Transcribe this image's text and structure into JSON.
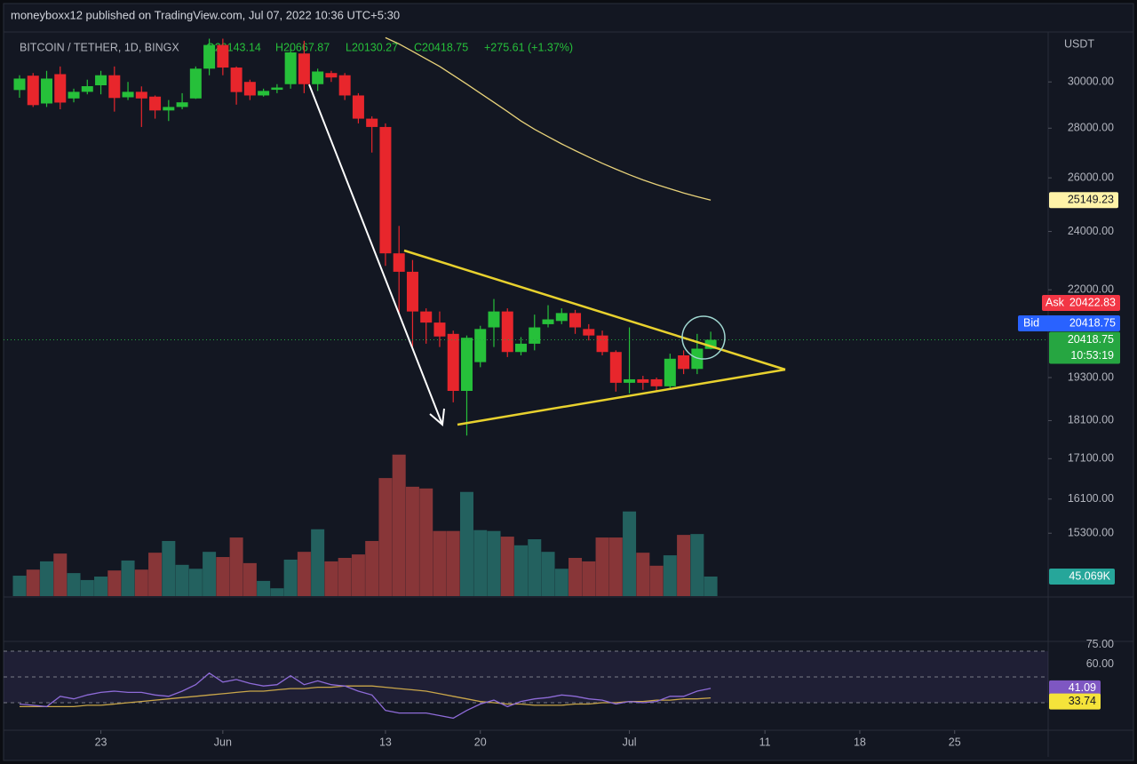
{
  "chart_data": {
    "type": "candlestick",
    "header": "moneyboxx12 published on TradingView.com, Jul 07, 2022 10:36 UTC+5:30",
    "legend": {
      "symbol": "BITCOIN / TETHER, 1D, BINGX",
      "open": "O20143.14",
      "high": "H20667.87",
      "low": "L20130.27",
      "close": "C20418.75",
      "change": "+275.61 (+1.37%)"
    },
    "log_scale": true,
    "y_unit": "USDT",
    "up_color": "#26c03a",
    "down_color": "#e8262c",
    "open": [
      29640,
      30280,
      29050,
      30350,
      29270,
      29560,
      29850,
      30300,
      29320,
      29560,
      29350,
      28750,
      28900,
      29270,
      30600,
      31700,
      30650,
      30000,
      29400,
      29650,
      29900,
      31300,
      29900,
      30400,
      30300,
      29400,
      28400,
      28050,
      23230,
      22600,
      21300,
      20950,
      20600,
      18920,
      19750,
      20800,
      21300,
      20050,
      20300,
      20900,
      21000,
      21250,
      20750,
      20550,
      20050,
      19150,
      19250,
      19250,
      19050,
      19950,
      19550,
      20143.14
    ],
    "high": [
      30300,
      30400,
      30500,
      30700,
      29700,
      30100,
      30500,
      30700,
      30000,
      29800,
      29400,
      29200,
      29500,
      30700,
      32000,
      32000,
      30700,
      30100,
      29700,
      29900,
      31500,
      31900,
      30600,
      30500,
      30400,
      29500,
      28500,
      28200,
      24200,
      23000,
      21400,
      21300,
      20700,
      20550,
      20850,
      21700,
      21400,
      20500,
      21200,
      21500,
      21400,
      21350,
      20900,
      20700,
      20100,
      20800,
      19350,
      19300,
      20000,
      20100,
      20600,
      20667.87
    ],
    "low": [
      29300,
      28900,
      28900,
      28800,
      29100,
      29450,
      29450,
      28700,
      29200,
      28050,
      28400,
      28300,
      28800,
      29250,
      30300,
      30300,
      29000,
      29200,
      29350,
      29500,
      29700,
      29500,
      29600,
      30000,
      29200,
      28200,
      27000,
      22800,
      21200,
      20200,
      20300,
      20200,
      18600,
      17700,
      19600,
      20200,
      19900,
      19950,
      20100,
      20800,
      20900,
      20600,
      20400,
      19950,
      18900,
      18850,
      18950,
      18900,
      19000,
      19400,
      19400,
      20130.27
    ],
    "close": [
      30150,
      28980,
      30150,
      29090,
      29560,
      29810,
      30300,
      29290,
      29560,
      29270,
      28750,
      28900,
      29100,
      30600,
      31700,
      30650,
      29550,
      29400,
      29600,
      29750,
      31350,
      29900,
      30470,
      30200,
      29400,
      28400,
      28050,
      23230,
      22600,
      21300,
      20950,
      20520,
      18920,
      20480,
      20750,
      21300,
      20050,
      20300,
      20800,
      21050,
      21250,
      20800,
      20550,
      20050,
      19150,
      19250,
      19150,
      19050,
      19850,
      19550,
      20150,
      20418.75
    ],
    "xlim": [
      -1.18,
      75.9
    ],
    "xticks": [
      {
        "value": 6,
        "label": "23"
      },
      {
        "value": 15,
        "label": "Jun"
      },
      {
        "value": 27,
        "label": "13"
      },
      {
        "value": 34,
        "label": "20"
      },
      {
        "value": 45,
        "label": "Jul"
      },
      {
        "value": 55,
        "label": "11"
      },
      {
        "value": 62,
        "label": "18"
      },
      {
        "value": 69,
        "label": "25"
      }
    ],
    "ylim": [
      13930,
      32150
    ],
    "yticks": [
      {
        "value": 30000,
        "label": "30000.00"
      },
      {
        "value": 28000,
        "label": "28000.00"
      },
      {
        "value": 26000,
        "label": "26000.00"
      },
      {
        "value": 24000,
        "label": "24000.00"
      },
      {
        "value": 22000,
        "label": "22000.00"
      },
      {
        "value": 19300,
        "label": "19300.00"
      },
      {
        "value": 18100,
        "label": "18100.00"
      },
      {
        "value": 17100,
        "label": "17100.00"
      },
      {
        "value": 16100,
        "label": "16100.00"
      },
      {
        "value": 15300,
        "label": "15300.00"
      }
    ],
    "moving_average": {
      "color": "#e8d27a",
      "values": [
        null,
        null,
        null,
        null,
        null,
        null,
        null,
        null,
        null,
        null,
        null,
        null,
        null,
        null,
        null,
        null,
        null,
        null,
        null,
        null,
        null,
        null,
        null,
        null,
        null,
        null,
        null,
        32050,
        31750,
        31400,
        31050,
        30700,
        30300,
        29900,
        29500,
        29100,
        28700,
        28300,
        27950,
        27650,
        27350,
        27080,
        26820,
        26570,
        26340,
        26120,
        25920,
        25740,
        25580,
        25420,
        25280,
        25149.23
      ]
    },
    "quote": {
      "ask_label": "Ask",
      "ask": 20422.83,
      "bid_label": "Bid",
      "countdown": "10:53:19"
    },
    "volume": {
      "up_color": "#23615f",
      "down_color": "#883638",
      "ylim": [
        0,
        350
      ],
      "values": [
        47,
        61,
        80,
        98,
        53,
        37,
        45,
        59,
        82,
        61,
        100,
        127,
        72,
        63,
        102,
        90,
        135,
        76,
        35,
        18,
        84,
        102,
        154,
        80,
        88,
        96,
        127,
        272,
        326,
        252,
        248,
        150,
        150,
        240,
        152,
        150,
        137,
        117,
        131,
        102,
        63,
        88,
        80,
        135,
        135,
        195,
        100,
        70,
        94,
        141,
        143,
        45.069
      ],
      "value_labels": [
        null,
        null,
        null,
        null,
        null,
        null,
        null,
        null,
        null,
        null,
        null,
        null,
        null,
        null,
        null,
        null,
        null,
        null,
        null,
        null,
        null,
        null,
        null,
        null,
        null,
        null,
        null,
        null,
        null,
        null,
        null,
        null,
        null,
        null,
        null,
        null,
        null,
        null,
        null,
        null,
        null,
        null,
        null,
        null,
        null,
        null,
        null,
        null,
        null,
        null,
        null,
        "45.069K"
      ]
    },
    "rsi": {
      "color": "#8e6bd8",
      "ma_color": "#c9a64a",
      "ylim": [
        10,
        77.6
      ],
      "yticks": [
        {
          "value": 75,
          "label": "75.00"
        },
        {
          "value": 60,
          "label": "60.00"
        }
      ],
      "bands": [
        70,
        50,
        30
      ],
      "values": [
        29,
        28,
        27,
        35,
        33,
        36,
        38,
        39,
        38,
        38,
        36,
        35,
        39,
        44,
        53,
        46,
        48,
        45,
        43,
        44,
        51,
        44,
        47,
        44,
        43,
        39,
        36,
        24,
        22,
        22,
        22,
        20,
        18,
        24,
        29,
        32,
        27,
        31,
        33,
        34,
        36,
        35,
        33,
        32,
        29,
        31,
        30,
        31,
        35,
        35,
        39,
        41.09
      ],
      "ma_values": [
        27,
        27,
        27,
        27,
        27,
        28,
        28,
        29,
        30,
        31,
        32,
        33,
        34,
        35,
        36,
        37,
        38,
        39,
        39,
        40,
        41,
        41,
        42,
        42,
        43,
        43,
        43,
        42,
        41,
        40,
        39,
        37,
        35,
        33,
        31,
        30,
        29,
        29,
        28,
        28,
        28,
        29,
        29,
        30,
        30,
        31,
        31,
        32,
        32,
        33,
        33,
        33.74
      ]
    }
  }
}
